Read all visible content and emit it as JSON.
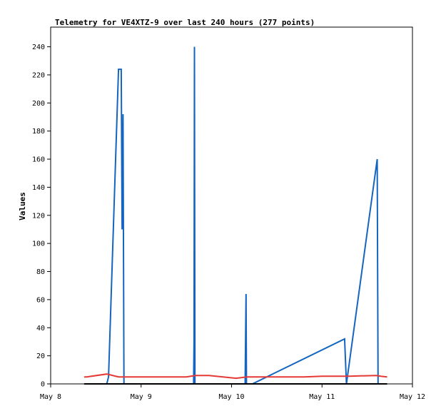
{
  "chart_data": {
    "type": "line",
    "title": "Telemetry for VE4XTZ-9 over last 240 hours (277 points)",
    "xlabel": "",
    "ylabel": "Values",
    "ylim": [
      0,
      254
    ],
    "y_ticks": [
      0,
      20,
      40,
      60,
      80,
      100,
      120,
      140,
      160,
      180,
      200,
      220,
      240
    ],
    "x_ticks": [
      {
        "label": "May 8",
        "day": 8
      },
      {
        "label": "May 9",
        "day": 9
      },
      {
        "label": "May 10",
        "day": 10
      },
      {
        "label": "May 11",
        "day": 11
      },
      {
        "label": "May 12",
        "day": 12
      }
    ],
    "xlim_days": [
      8,
      12
    ],
    "grid": false,
    "legend": "none",
    "series": [
      {
        "color": "#1565c0",
        "points": [
          [
            8.62,
            0
          ],
          [
            8.64,
            5
          ],
          [
            8.75,
            224
          ],
          [
            8.78,
            224
          ],
          [
            8.79,
            110
          ],
          [
            8.795,
            145
          ],
          [
            8.8,
            192
          ],
          [
            8.81,
            0
          ],
          [
            9.58,
            0
          ],
          [
            9.585,
            30
          ],
          [
            9.59,
            240
          ],
          [
            9.595,
            0
          ],
          [
            10.15,
            0
          ],
          [
            10.16,
            64
          ],
          [
            10.165,
            0
          ],
          [
            10.23,
            0
          ],
          [
            11.25,
            32
          ],
          [
            11.27,
            0
          ],
          [
            11.61,
            160
          ],
          [
            11.615,
            80
          ],
          [
            11.62,
            0
          ]
        ]
      },
      {
        "color": "#e53935",
        "points": [
          [
            8.37,
            5
          ],
          [
            8.4,
            5
          ],
          [
            8.62,
            7
          ],
          [
            8.75,
            5
          ],
          [
            9.0,
            5
          ],
          [
            9.5,
            5
          ],
          [
            9.6,
            6
          ],
          [
            9.75,
            6
          ],
          [
            10.05,
            4
          ],
          [
            10.17,
            5
          ],
          [
            10.5,
            5
          ],
          [
            10.8,
            5
          ],
          [
            11.0,
            5.5
          ],
          [
            11.3,
            5.5
          ],
          [
            11.6,
            6
          ],
          [
            11.65,
            5.5
          ],
          [
            11.72,
            5
          ]
        ]
      },
      {
        "color": "#000000",
        "points": [
          [
            8.37,
            0
          ],
          [
            11.72,
            0
          ]
        ]
      }
    ]
  }
}
